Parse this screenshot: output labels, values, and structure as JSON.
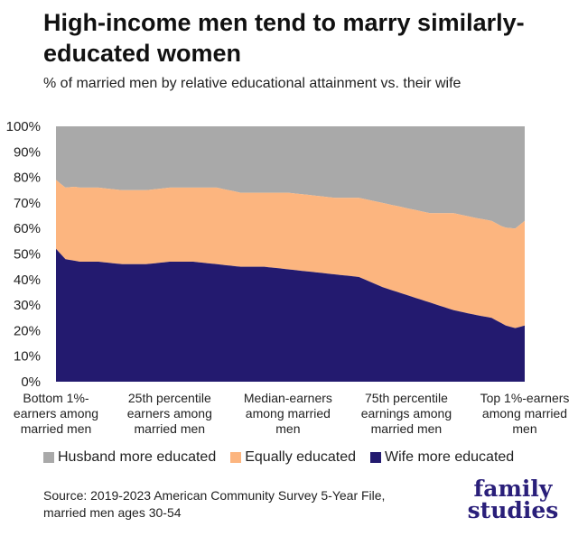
{
  "header": {
    "title": "High-income men tend to marry similarly-educated women",
    "subtitle": "% of married men by relative educational attainment vs. their wife"
  },
  "legend": {
    "husband": "Husband more educated",
    "equal": "Equally educated",
    "wife": "Wife more educated"
  },
  "source": "Source: 2019-2023 American Community Survey 5-Year File, married men ages 30-54",
  "logo": {
    "line1": "family",
    "line2": "studies"
  },
  "colors": {
    "husband": "#a9a9a9",
    "equal": "#fcb57f",
    "wife": "#231a6f"
  },
  "chart_data": {
    "type": "area",
    "stacked": true,
    "y_ticks": [
      "0%",
      "10%",
      "20%",
      "30%",
      "40%",
      "50%",
      "60%",
      "70%",
      "80%",
      "90%",
      "100%"
    ],
    "ylim": [
      0,
      100
    ],
    "x_labels": [
      "Bottom 1%- earners among married men",
      "25th percentile earners among married men",
      "Median-earners among married men",
      "75th percentile earnings among married men",
      "Top 1%-earners among married men"
    ],
    "x_label_positions": [
      1,
      25,
      50,
      75,
      100
    ],
    "xlim": [
      1,
      100
    ],
    "grid": false,
    "series": [
      {
        "name": "Wife more educated",
        "anchors": [
          [
            1,
            52
          ],
          [
            3,
            48
          ],
          [
            6,
            47
          ],
          [
            10,
            47
          ],
          [
            15,
            46
          ],
          [
            20,
            46
          ],
          [
            25,
            47
          ],
          [
            30,
            47
          ],
          [
            35,
            46
          ],
          [
            40,
            45
          ],
          [
            45,
            45
          ],
          [
            50,
            44
          ],
          [
            55,
            43
          ],
          [
            60,
            42
          ],
          [
            65,
            41
          ],
          [
            70,
            37
          ],
          [
            75,
            34
          ],
          [
            80,
            31
          ],
          [
            85,
            28
          ],
          [
            90,
            26
          ],
          [
            93,
            25
          ],
          [
            96,
            22
          ],
          [
            98,
            21
          ],
          [
            100,
            22
          ]
        ]
      },
      {
        "name": "Equally educated",
        "anchors": [
          [
            1,
            27
          ],
          [
            5,
            29
          ],
          [
            10,
            29
          ],
          [
            15,
            29
          ],
          [
            20,
            29
          ],
          [
            25,
            29
          ],
          [
            30,
            29
          ],
          [
            35,
            30
          ],
          [
            40,
            29
          ],
          [
            45,
            29
          ],
          [
            50,
            30
          ],
          [
            55,
            30
          ],
          [
            60,
            30
          ],
          [
            65,
            31
          ],
          [
            70,
            33
          ],
          [
            75,
            34
          ],
          [
            80,
            35
          ],
          [
            85,
            38
          ],
          [
            90,
            38
          ],
          [
            95,
            38
          ],
          [
            98,
            39
          ],
          [
            100,
            41
          ]
        ]
      },
      {
        "name": "Husband more educated",
        "anchors": [
          [
            1,
            21
          ],
          [
            10,
            24
          ],
          [
            20,
            25
          ],
          [
            30,
            24
          ],
          [
            40,
            26
          ],
          [
            50,
            26
          ],
          [
            60,
            28
          ],
          [
            70,
            30
          ],
          [
            75,
            32
          ],
          [
            80,
            34
          ],
          [
            85,
            34
          ],
          [
            90,
            36
          ],
          [
            95,
            39
          ],
          [
            100,
            37
          ]
        ]
      }
    ]
  }
}
